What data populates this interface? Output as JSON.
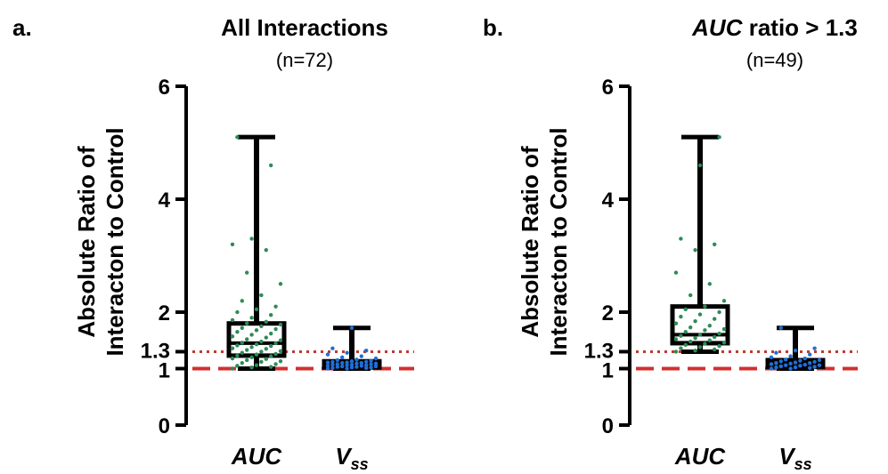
{
  "chart_data": [
    {
      "type": "box",
      "panel_label": "a.",
      "title": "All Interactions",
      "subtitle": "(n=72)",
      "title_italic": "",
      "ylabel_line1": "Absolute Ratio of",
      "ylabel_line2": "Interacton to Control",
      "xlabel": "",
      "ylim": [
        0,
        6
      ],
      "yticks": [
        {
          "value": 0,
          "label": "0"
        },
        {
          "value": 1,
          "label": "1"
        },
        {
          "value": 1.3,
          "label": "1.3"
        },
        {
          "value": 2,
          "label": "2"
        },
        {
          "value": 4,
          "label": "4"
        },
        {
          "value": 6,
          "label": "6"
        }
      ],
      "reference_lines": [
        {
          "value": 1.3,
          "style": "dotted",
          "color": "#c0392b"
        },
        {
          "value": 1.0,
          "style": "dashed",
          "color": "#d32f2f"
        }
      ],
      "categories": [
        {
          "label": "AUC",
          "sub": "",
          "min": 1.0,
          "q1": 1.23,
          "median": 1.45,
          "q3": 1.8,
          "max": 5.1,
          "point_color": "#2e8b57",
          "points": [
            1.0,
            1.02,
            1.03,
            1.05,
            1.06,
            1.08,
            1.1,
            1.12,
            1.13,
            1.15,
            1.17,
            1.18,
            1.2,
            1.22,
            1.23,
            1.25,
            1.26,
            1.28,
            1.3,
            1.31,
            1.33,
            1.35,
            1.36,
            1.38,
            1.4,
            1.41,
            1.43,
            1.45,
            1.46,
            1.48,
            1.5,
            1.52,
            1.55,
            1.57,
            1.6,
            1.62,
            1.65,
            1.68,
            1.7,
            1.72,
            1.75,
            1.78,
            1.8,
            1.83,
            1.86,
            1.9,
            1.95,
            2.0,
            2.05,
            2.1,
            2.2,
            2.3,
            2.5,
            2.7,
            3.1,
            3.2,
            3.3,
            4.6,
            5.1
          ]
        },
        {
          "label": "V",
          "sub": "ss",
          "min": 1.0,
          "q1": 1.02,
          "median": 1.08,
          "q3": 1.13,
          "max": 1.72,
          "point_color": "#1f6fd6",
          "points": [
            1.0,
            1.0,
            1.01,
            1.01,
            1.02,
            1.02,
            1.03,
            1.03,
            1.04,
            1.04,
            1.05,
            1.05,
            1.06,
            1.06,
            1.07,
            1.07,
            1.08,
            1.08,
            1.09,
            1.09,
            1.1,
            1.1,
            1.11,
            1.11,
            1.12,
            1.12,
            1.13,
            1.14,
            1.15,
            1.16,
            1.18,
            1.2,
            1.22,
            1.25,
            1.28,
            1.32,
            1.36,
            1.72
          ]
        }
      ]
    },
    {
      "type": "box",
      "panel_label": "b.",
      "title": " ratio > 1.3",
      "subtitle": "(n=49)",
      "title_italic": "AUC",
      "ylabel_line1": "Absolute Ratio of",
      "ylabel_line2": "Interacton to Control",
      "xlabel": "",
      "ylim": [
        0,
        6
      ],
      "yticks": [
        {
          "value": 0,
          "label": "0"
        },
        {
          "value": 1,
          "label": "1"
        },
        {
          "value": 1.3,
          "label": "1.3"
        },
        {
          "value": 2,
          "label": "2"
        },
        {
          "value": 4,
          "label": "4"
        },
        {
          "value": 6,
          "label": "6"
        }
      ],
      "reference_lines": [
        {
          "value": 1.3,
          "style": "dotted",
          "color": "#c0392b"
        },
        {
          "value": 1.0,
          "style": "dashed",
          "color": "#d32f2f"
        }
      ],
      "categories": [
        {
          "label": "AUC",
          "sub": "",
          "min": 1.3,
          "q1": 1.45,
          "median": 1.6,
          "q3": 2.1,
          "max": 5.1,
          "point_color": "#2e8b57",
          "points": [
            1.3,
            1.32,
            1.34,
            1.36,
            1.38,
            1.4,
            1.42,
            1.44,
            1.46,
            1.48,
            1.5,
            1.52,
            1.54,
            1.56,
            1.58,
            1.6,
            1.62,
            1.65,
            1.68,
            1.7,
            1.73,
            1.76,
            1.8,
            1.84,
            1.88,
            1.92,
            1.96,
            2.0,
            2.05,
            2.1,
            2.2,
            2.3,
            2.5,
            2.7,
            3.1,
            3.2,
            3.3,
            4.6,
            5.1
          ]
        },
        {
          "label": "V",
          "sub": "ss",
          "min": 1.0,
          "q1": 1.03,
          "median": 1.1,
          "q3": 1.15,
          "max": 1.72,
          "point_color": "#1f6fd6",
          "points": [
            1.0,
            1.0,
            1.01,
            1.02,
            1.02,
            1.03,
            1.04,
            1.05,
            1.06,
            1.06,
            1.07,
            1.08,
            1.09,
            1.1,
            1.1,
            1.11,
            1.12,
            1.13,
            1.14,
            1.15,
            1.16,
            1.18,
            1.2,
            1.22,
            1.25,
            1.28,
            1.32,
            1.36,
            1.72
          ]
        }
      ]
    }
  ]
}
